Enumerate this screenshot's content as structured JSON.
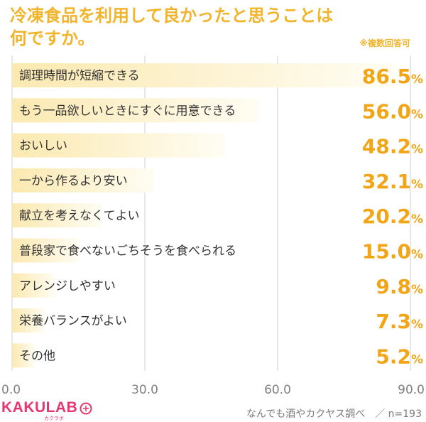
{
  "header": {
    "title_line1": "冷凍食品を利用して良かったと思うことは",
    "title_line2": "何ですか。",
    "note": "※複数回答可"
  },
  "footer": {
    "brand": "KAKULAB",
    "brand_sub": "カクラボ",
    "source": "なんでも酒やカクヤス調べ　／ n=193"
  },
  "colors": {
    "bar_start": "#fbe9b0",
    "bar_end": "#fffdf4",
    "value": "#f2a516",
    "label": "#333333",
    "tick": "#808080",
    "grid": "#cfcfcf"
  },
  "chart_data": {
    "type": "bar",
    "orientation": "horizontal",
    "categories": [
      "調理時間が短縮できる",
      "もう一品欲しいときにすぐに用意できる",
      "おいしい",
      "一から作るより安い",
      "献立を考えなくてよい",
      "普段家で食べないごちそうを食べられる",
      "アレンジしやすい",
      "栄養バランスがよい",
      "その他"
    ],
    "values": [
      86.5,
      56.0,
      48.2,
      32.1,
      20.2,
      15.0,
      9.8,
      7.3,
      5.2
    ],
    "value_unit": "%",
    "xlim": [
      0,
      90
    ],
    "ticks": [
      "0.0",
      "30.0",
      "60.0",
      "90.0"
    ],
    "tick_values": [
      0,
      30,
      60,
      90
    ],
    "grid": true
  }
}
